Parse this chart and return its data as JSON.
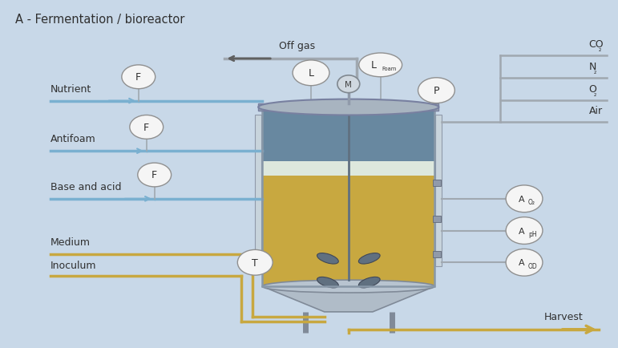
{
  "title": "A - Fermentation / bioreactor",
  "bg": "#c8d8e8",
  "labels": {
    "nutrient": "Nutrient",
    "antifoam": "Antifoam",
    "base_acid": "Base and acid",
    "medium": "Medium",
    "inoculum": "Inoculum",
    "off_gas": "Off gas",
    "harvest": "Harvest"
  },
  "gas_labels": [
    "CO₂",
    "N₂",
    "O₂",
    "Air"
  ],
  "sensor_right": [
    [
      "A",
      "O₂"
    ],
    [
      "A",
      "pH"
    ],
    [
      "A",
      "OD"
    ]
  ],
  "pipe_blue": "#7ab0d0",
  "pipe_gold": "#c8a840",
  "pipe_gray": "#a0a8b0",
  "inst_face": "#f5f5f5",
  "inst_edge": "#909090",
  "text_color": "#303030",
  "reactor_head": "#6888a0",
  "reactor_foam": "#dde8dd",
  "reactor_body": "#c8a840",
  "reactor_shell": "#8898a8",
  "reactor_metal": "#a0aab4",
  "stirrer_color": "#607080"
}
